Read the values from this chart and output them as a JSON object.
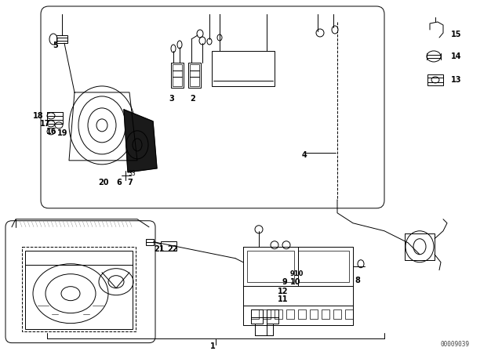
{
  "background_color": "#ffffff",
  "fig_width": 6.4,
  "fig_height": 4.48,
  "dpi": 100,
  "diagram_color": "#000000",
  "label_fontsize": 6.5,
  "watermark": "00009039"
}
